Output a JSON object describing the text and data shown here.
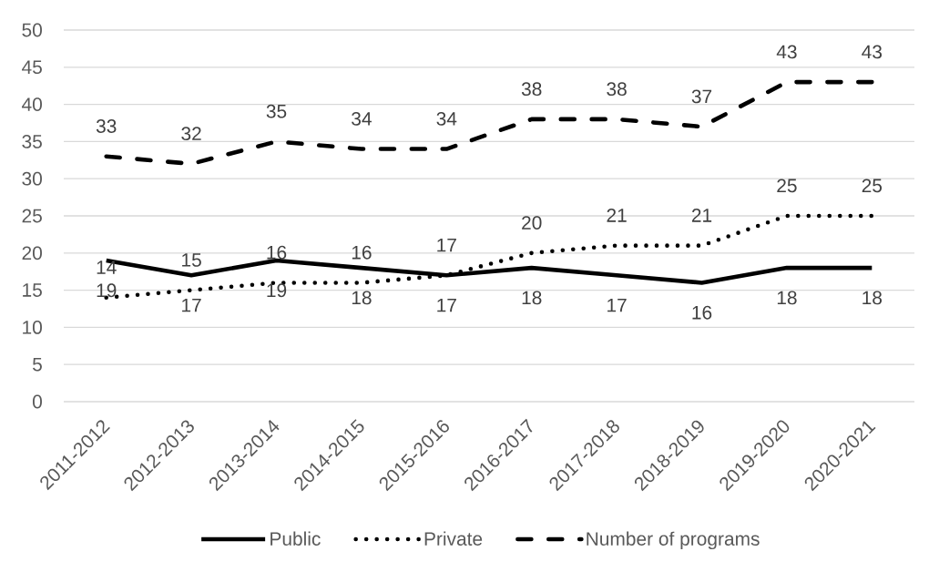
{
  "chart_data": {
    "type": "line",
    "categories": [
      "2011-2012",
      "2012-2013",
      "2013-2014",
      "2014-2015",
      "2015-2016",
      "2016-2017",
      "2017-2018",
      "2018-2019",
      "2019-2020",
      "2020-2021"
    ],
    "series": [
      {
        "name": "Public",
        "color": "#000000",
        "line_style": "solid",
        "values": [
          19,
          17,
          19,
          18,
          17,
          18,
          17,
          16,
          18,
          18
        ]
      },
      {
        "name": "Private",
        "color": "#000000",
        "line_style": "dotted",
        "values": [
          14,
          15,
          16,
          16,
          17,
          20,
          21,
          21,
          25,
          25
        ]
      },
      {
        "name": "Number of programs",
        "color": "#000000",
        "line_style": "dashed",
        "values": [
          33,
          32,
          35,
          34,
          34,
          38,
          38,
          37,
          43,
          43
        ]
      }
    ],
    "ylim": [
      0,
      50
    ],
    "yticks": [
      0,
      5,
      10,
      15,
      20,
      25,
      30,
      35,
      40,
      45,
      50
    ],
    "grid": "y",
    "legend": "bottom",
    "data_labels": true
  }
}
